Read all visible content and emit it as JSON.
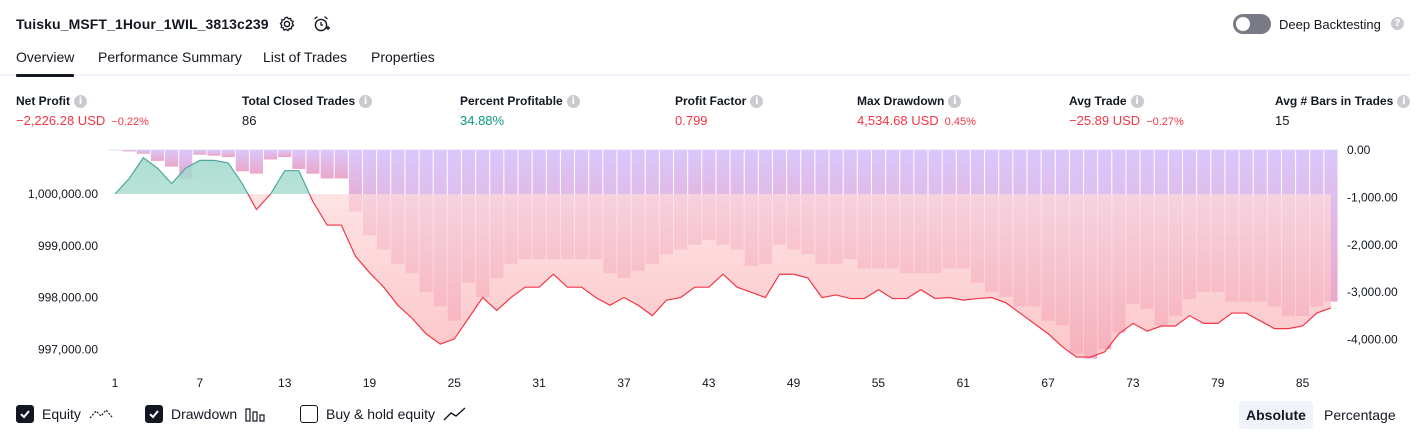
{
  "header": {
    "strategy_name": "Tuisku_MSFT_1Hour_1WIL_3813c239",
    "deep_backtesting_label": "Deep Backtesting",
    "deep_backtesting_enabled": false
  },
  "tabs": [
    {
      "label": "Overview",
      "active": true
    },
    {
      "label": "Performance Summary",
      "active": false
    },
    {
      "label": "List of Trades",
      "active": false
    },
    {
      "label": "Properties",
      "active": false
    }
  ],
  "metrics": {
    "net_profit": {
      "label": "Net Profit",
      "value": "−2,226.28 USD",
      "pct": "−0.22%"
    },
    "total_closed_trades": {
      "label": "Total Closed Trades",
      "value": "86"
    },
    "percent_profitable": {
      "label": "Percent Profitable",
      "value": "34.88%"
    },
    "profit_factor": {
      "label": "Profit Factor",
      "value": "0.799"
    },
    "max_drawdown": {
      "label": "Max Drawdown",
      "value": "4,534.68 USD",
      "pct": "0.45%"
    },
    "avg_trade": {
      "label": "Avg Trade",
      "value": "−25.89 USD",
      "pct": "−0.27%"
    },
    "avg_bars": {
      "label": "Avg # Bars in Trades",
      "value": "15"
    }
  },
  "legend": {
    "equity": {
      "label": "Equity",
      "checked": true
    },
    "drawdown": {
      "label": "Drawdown",
      "checked": true
    },
    "buy_hold": {
      "label": "Buy & hold equity",
      "checked": false
    }
  },
  "view_modes": {
    "absolute": "Absolute",
    "percentage": "Percentage",
    "active": "absolute"
  },
  "colors": {
    "positive": "#089981",
    "negative": "#f23645",
    "drawdown_bar": "#d9c3fb",
    "equity_line_up": "#4fa89a",
    "equity_line_down": "#f23645"
  },
  "chart_data": {
    "type": "area",
    "x_tick_labels": [
      "1",
      "7",
      "13",
      "19",
      "25",
      "31",
      "37",
      "43",
      "49",
      "55",
      "61",
      "67",
      "73",
      "79",
      "85"
    ],
    "left_axis_labels": [
      "1,000,000.00",
      "999,000.00",
      "998,000.00",
      "997,000.00"
    ],
    "right_axis_labels": [
      "0.00",
      "-1,000.00",
      "-2,000.00",
      "-3,000.00",
      "-4,000.00"
    ],
    "equity_ylim": [
      996600,
      1000850
    ],
    "drawdown_ylim": [
      -4600,
      0
    ],
    "initial_capital": 1000000,
    "series": [
      {
        "name": "Equity",
        "x": [
          1,
          2,
          3,
          4,
          5,
          6,
          7,
          8,
          9,
          10,
          11,
          12,
          13,
          14,
          15,
          16,
          17,
          18,
          19,
          20,
          21,
          22,
          23,
          24,
          25,
          26,
          27,
          28,
          29,
          30,
          31,
          32,
          33,
          34,
          35,
          36,
          37,
          38,
          39,
          40,
          41,
          42,
          43,
          44,
          45,
          46,
          47,
          48,
          49,
          50,
          51,
          52,
          53,
          54,
          55,
          56,
          57,
          58,
          59,
          60,
          61,
          62,
          63,
          64,
          65,
          66,
          67,
          68,
          69,
          70,
          71,
          72,
          73,
          74,
          75,
          76,
          77,
          78,
          79,
          80,
          81,
          82,
          83,
          84,
          85,
          86,
          87
        ],
        "values": [
          1000000,
          1000300,
          1000700,
          1000500,
          1000200,
          1000500,
          1000650,
          1000650,
          1000600,
          1000200,
          999700,
          1000000,
          1000450,
          1000450,
          999850,
          999400,
          999400,
          998800,
          998480,
          998200,
          997850,
          997600,
          997300,
          997100,
          997200,
          997600,
          998000,
          997750,
          998000,
          998200,
          998200,
          998450,
          998200,
          998200,
          998000,
          997850,
          998000,
          997850,
          997650,
          997950,
          998000,
          998200,
          998200,
          998450,
          998200,
          998100,
          998000,
          998450,
          998450,
          998380,
          998000,
          998050,
          997980,
          997980,
          998150,
          997980,
          997980,
          998150,
          997980,
          998000,
          997950,
          997980,
          998000,
          997900,
          997700,
          997500,
          997300,
          997050,
          996850,
          996850,
          996950,
          997300,
          997500,
          997350,
          997450,
          997450,
          997650,
          997500,
          997500,
          997700,
          997700,
          997550,
          997400,
          997400,
          997450,
          997700,
          997800
        ]
      },
      {
        "name": "Drawdown",
        "x": [
          1,
          2,
          3,
          4,
          5,
          6,
          7,
          8,
          9,
          10,
          11,
          12,
          13,
          14,
          15,
          16,
          17,
          18,
          19,
          20,
          21,
          22,
          23,
          24,
          25,
          26,
          27,
          28,
          29,
          30,
          31,
          32,
          33,
          34,
          35,
          36,
          37,
          38,
          39,
          40,
          41,
          42,
          43,
          44,
          45,
          46,
          47,
          48,
          49,
          50,
          51,
          52,
          53,
          54,
          55,
          56,
          57,
          58,
          59,
          60,
          61,
          62,
          63,
          64,
          65,
          66,
          67,
          68,
          69,
          70,
          71,
          72,
          73,
          74,
          75,
          76,
          77,
          78,
          79,
          80,
          81,
          82,
          83,
          84,
          85,
          86,
          87
        ],
        "values": [
          0,
          -30,
          -80,
          -230,
          -350,
          -600,
          -100,
          -120,
          -150,
          -450,
          -500,
          -200,
          -150,
          -400,
          -500,
          -600,
          -600,
          -1300,
          -1800,
          -2100,
          -2400,
          -2600,
          -3000,
          -3300,
          -3600,
          -2800,
          -3100,
          -2700,
          -2400,
          -2300,
          -2300,
          -2300,
          -2300,
          -2300,
          -2300,
          -2600,
          -2700,
          -2550,
          -2400,
          -2200,
          -2100,
          -2000,
          -1900,
          -2000,
          -2100,
          -2450,
          -2400,
          -2000,
          -2100,
          -2200,
          -2400,
          -2400,
          -2300,
          -2500,
          -2500,
          -2500,
          -2600,
          -2600,
          -2600,
          -2500,
          -2500,
          -2800,
          -3000,
          -3100,
          -3300,
          -3300,
          -3600,
          -3700,
          -4300,
          -4400,
          -4200,
          -3850,
          -3250,
          -3350,
          -3700,
          -3500,
          -3150,
          -3000,
          -3000,
          -3200,
          -3200,
          -3200,
          -3300,
          -3500,
          -3500,
          -3300,
          -3200
        ]
      }
    ]
  }
}
